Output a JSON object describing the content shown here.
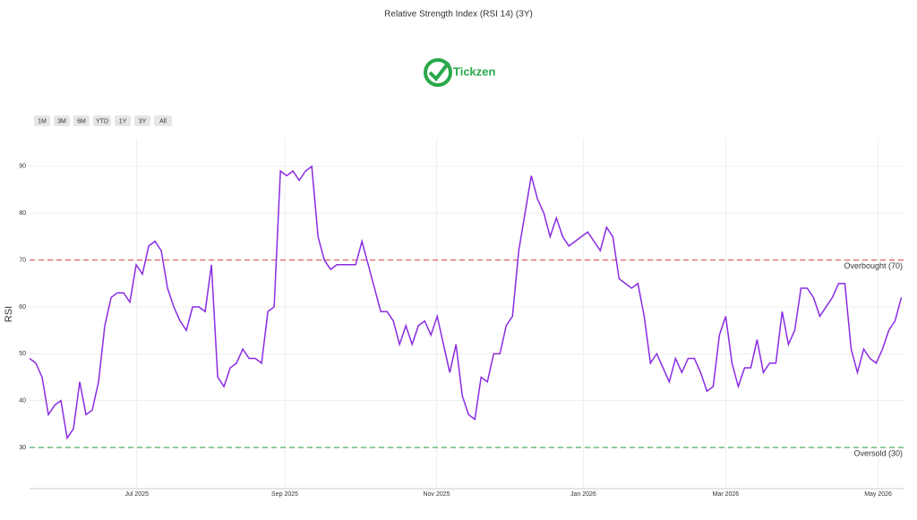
{
  "chart_data": {
    "type": "line",
    "title": "Relative Strength Index (RSI 14) (3Y)",
    "y_label": "RSI",
    "values": [
      49,
      48,
      45,
      37,
      39,
      40,
      32,
      34,
      44,
      37,
      38,
      44,
      56,
      62,
      63,
      63,
      61,
      69,
      67,
      73,
      74,
      72,
      64,
      60,
      57,
      55,
      60,
      60,
      59,
      69,
      45,
      43,
      47,
      48,
      51,
      49,
      49,
      48,
      59,
      60,
      89,
      88,
      89,
      87,
      89,
      90,
      75,
      70,
      68,
      69,
      69,
      69,
      69,
      74,
      69,
      64,
      59,
      59,
      57,
      52,
      56,
      52,
      56,
      57,
      54,
      58,
      52,
      46,
      52,
      41,
      37,
      36,
      45,
      44,
      50,
      50,
      56,
      58,
      72,
      80,
      88,
      83,
      80,
      75,
      79,
      75,
      73,
      74,
      75,
      76,
      74,
      72,
      77,
      75,
      66,
      65,
      64,
      65,
      58,
      48,
      50,
      47,
      44,
      49,
      46,
      49,
      49,
      46,
      42,
      43,
      54,
      58,
      48,
      43,
      47,
      47,
      53,
      46,
      48,
      48,
      59,
      52,
      55,
      64,
      64,
      62,
      58,
      60,
      62,
      65,
      65,
      51,
      46,
      51,
      49,
      48,
      51,
      55,
      57,
      62
    ],
    "color": "#8a2be2",
    "xlim": [
      0,
      139.5
    ],
    "xticks": [
      {
        "value": 17.1,
        "label": "Jul 2025"
      },
      {
        "value": 40.7,
        "label": "Sep 2025"
      },
      {
        "value": 64.9,
        "label": "Nov 2025"
      },
      {
        "value": 88.3,
        "label": "Jan 2026"
      },
      {
        "value": 111,
        "label": "Mar 2026"
      },
      {
        "value": 135.3,
        "label": "May 2026"
      }
    ],
    "ylim": [
      21.2,
      95.9
    ],
    "yticks": [
      30,
      40,
      50,
      60,
      70,
      80,
      90
    ],
    "grid": true,
    "hlines": [
      {
        "value": 70,
        "label": "Overbought (70)",
        "color": "#e05260"
      },
      {
        "value": 30,
        "label": "Oversold (30)",
        "color": "#3aa655"
      }
    ]
  },
  "logo": {
    "text": "Tickzen"
  },
  "range_buttons": [
    "1M",
    "3M",
    "6M",
    "YTD",
    "1Y",
    "3Y",
    "All"
  ]
}
